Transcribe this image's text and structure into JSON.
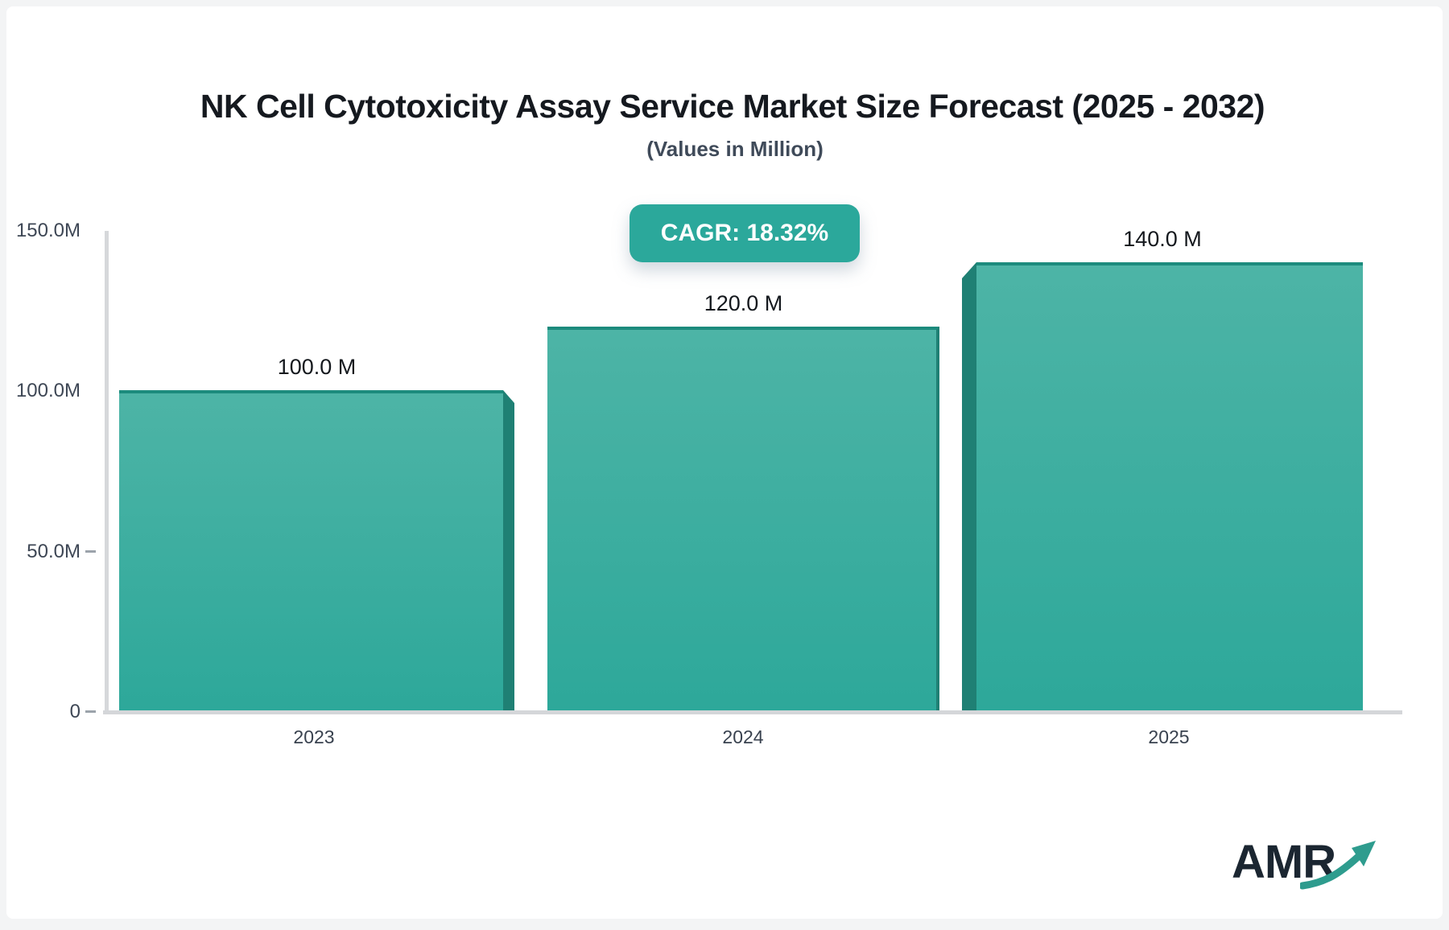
{
  "header": {
    "title": "NK Cell Cytotoxicity Assay Service Market Size Forecast (2025 - 2032)",
    "subtitle": "(Values in Million)",
    "cagr_label": "CAGR: 18.32%"
  },
  "chart_data": {
    "type": "bar",
    "title": "NK Cell Cytotoxicity Assay Service Market Size Forecast (2025 - 2032)",
    "subtitle": "(Values in Million)",
    "unit": "Million",
    "categories": [
      "2023",
      "2024",
      "2025"
    ],
    "values": [
      100.0,
      120.0,
      140.0
    ],
    "bar_labels": [
      "100.0 M",
      "120.0 M",
      "140.0 M"
    ],
    "cagr_percent": 18.32,
    "ylim": [
      0,
      150
    ],
    "ytick_labels": [
      "150.0M",
      "100.0M",
      "50.0M",
      "0"
    ],
    "grid": false,
    "legend": "none",
    "bar_gradient_top": "#4DB4A6",
    "bar_gradient_bottom": "#2DA89A",
    "bar_side_color": "#1F8074",
    "bar_top_edge_color": "#1C8B7D"
  },
  "footer": {
    "logo_text": "AMR"
  },
  "colors": {
    "accent_teal": "#2BA89B",
    "axis_gray": "#D5D7DA",
    "title_text": "#15191F",
    "subtitle_text": "#3F4A59",
    "label_text": "#3E4755",
    "logo_text": "#1B2631",
    "logo_arrow": "#2E9C8E"
  }
}
